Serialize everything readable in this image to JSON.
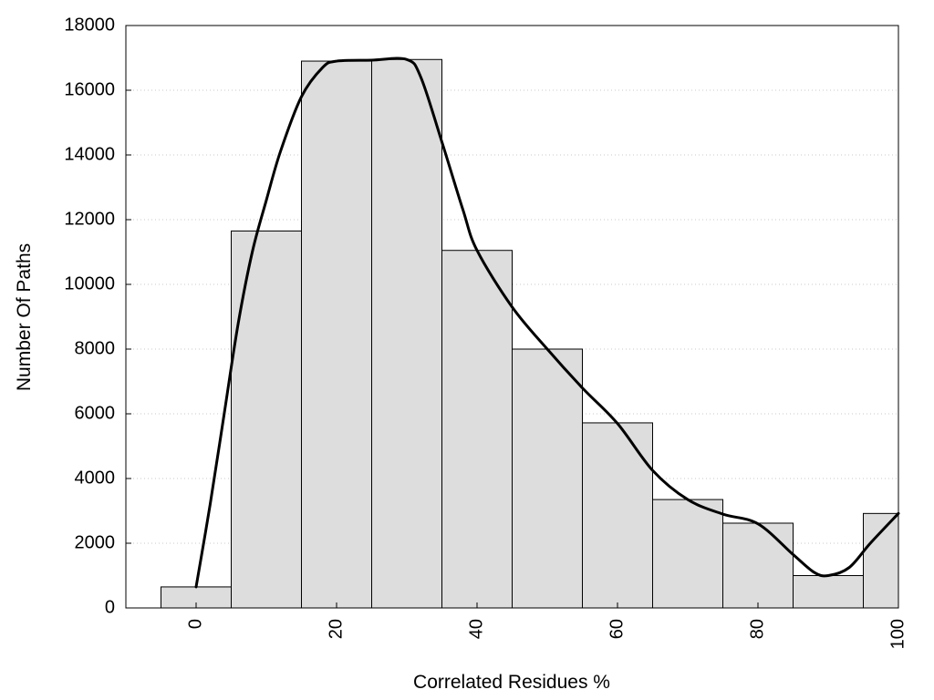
{
  "chart_data": {
    "type": "bar",
    "title": "",
    "xlabel": "Correlated Residues %",
    "ylabel": "Number Of Paths",
    "categories": [
      0,
      10,
      20,
      30,
      40,
      50,
      60,
      70,
      80,
      90,
      100
    ],
    "values": [
      650,
      11650,
      16900,
      16950,
      11050,
      8000,
      5720,
      3350,
      2620,
      1000,
      2920
    ],
    "bin_width": 10,
    "xlim": [
      -10,
      100
    ],
    "ylim": [
      0,
      18000
    ],
    "x_ticks": [
      0,
      20,
      40,
      60,
      80,
      100
    ],
    "y_ticks": [
      0,
      2000,
      4000,
      6000,
      8000,
      10000,
      12000,
      14000,
      16000,
      18000
    ],
    "grid": "horizontal dotted",
    "bar_color": "#dddddd",
    "bar_edge_color": "#000000",
    "curve": {
      "type": "smoothed line",
      "color": "#000000",
      "x": [
        0,
        2,
        4,
        6,
        8,
        10,
        12,
        15,
        18,
        20,
        25,
        30,
        32,
        35,
        38,
        40,
        45,
        50,
        55,
        60,
        65,
        70,
        75,
        80,
        85,
        88,
        90,
        93,
        96,
        100
      ],
      "y": [
        650,
        3200,
        6000,
        8800,
        11000,
        12600,
        14100,
        15800,
        16700,
        16900,
        16930,
        16950,
        16400,
        14400,
        12300,
        11050,
        9300,
        8000,
        6800,
        5700,
        4250,
        3350,
        2900,
        2600,
        1650,
        1100,
        1000,
        1250,
        2000,
        2920
      ]
    }
  }
}
